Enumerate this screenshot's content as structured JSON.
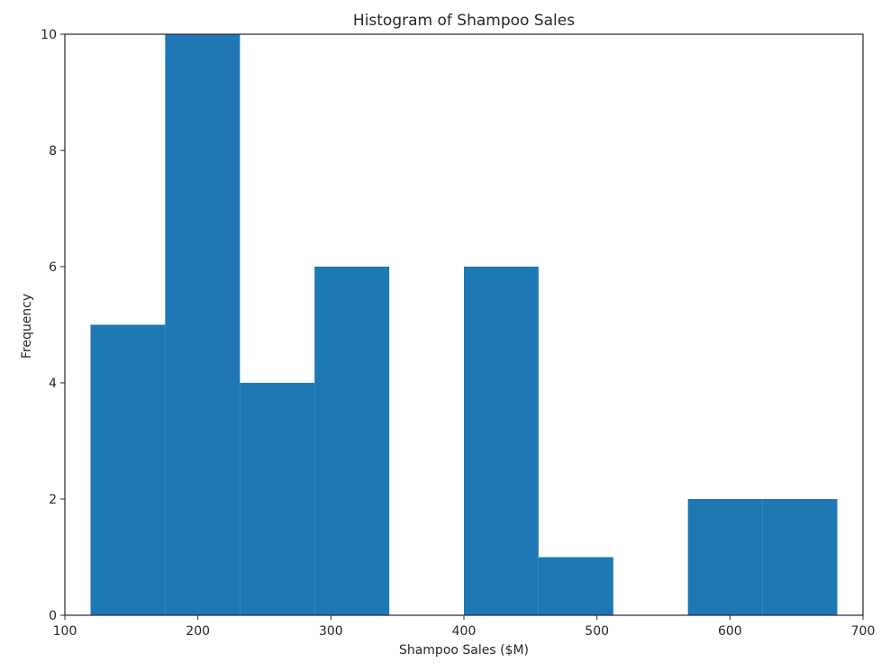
{
  "chart_data": {
    "type": "bar",
    "title": "Histogram of Shampoo Sales",
    "xlabel": "Shampoo Sales ($M)",
    "ylabel": "Frequency",
    "xlim": [
      100,
      700
    ],
    "ylim": [
      0,
      10
    ],
    "x_ticks": [
      "100",
      "200",
      "300",
      "400",
      "500",
      "600",
      "700"
    ],
    "y_ticks": [
      "0",
      "2",
      "4",
      "6",
      "8",
      "10"
    ],
    "bin_edges": [
      119.3,
      175.4,
      231.6,
      287.7,
      343.9,
      400.0,
      456.1,
      512.3,
      568.4,
      624.6,
      680.7
    ],
    "counts": [
      5,
      10,
      4,
      6,
      0,
      6,
      1,
      0,
      2,
      2
    ],
    "grid": false,
    "bar_color": "#1f77b4"
  }
}
